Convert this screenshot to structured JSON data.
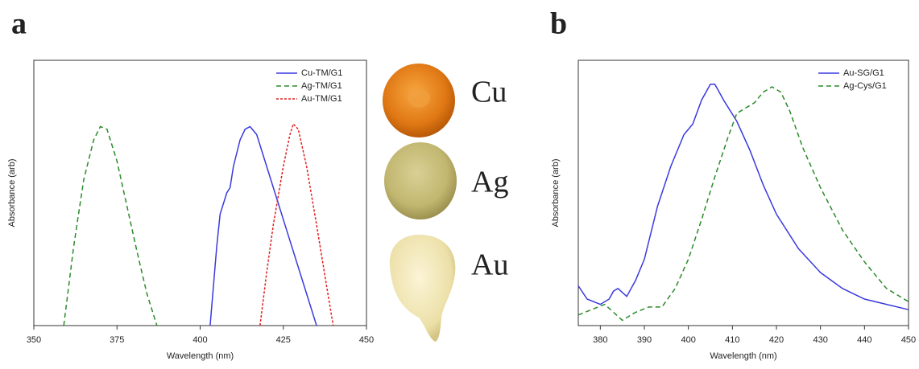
{
  "chart_data": [
    {
      "type": "line",
      "panel_label": "a",
      "x_label": "Wavelength (nm)",
      "y_label": "Absorbance (arb)",
      "xlim": [
        350,
        450
      ],
      "xticks": [
        350,
        375,
        400,
        425,
        450
      ],
      "ylim": [
        0,
        1
      ],
      "legend": "upper right",
      "series": [
        {
          "name": "Cu-TM/G1",
          "color": "#3a3adf",
          "dash": "solid",
          "x": [
            403,
            405,
            406,
            408,
            409,
            410,
            412,
            413.5,
            415,
            417,
            420,
            423,
            426,
            430,
            433,
            435
          ],
          "values": [
            0,
            0.3,
            0.42,
            0.5,
            0.52,
            0.6,
            0.7,
            0.74,
            0.75,
            0.72,
            0.6,
            0.48,
            0.36,
            0.2,
            0.08,
            0
          ]
        },
        {
          "name": "Ag-TM/G1",
          "color": "#2a8a2a",
          "dash": "dashed",
          "x": [
            359,
            362,
            365,
            368,
            370,
            372,
            375,
            378,
            381,
            384,
            387
          ],
          "values": [
            0,
            0.3,
            0.55,
            0.7,
            0.75,
            0.74,
            0.62,
            0.45,
            0.28,
            0.12,
            0
          ]
        },
        {
          "name": "Au-TM/G1",
          "color": "#e02020",
          "dash": "dotted",
          "x": [
            418,
            420,
            422,
            425,
            427,
            428,
            429.5,
            432,
            435,
            438,
            440
          ],
          "values": [
            0,
            0.2,
            0.38,
            0.6,
            0.72,
            0.76,
            0.74,
            0.6,
            0.38,
            0.15,
            0
          ]
        }
      ]
    },
    {
      "type": "line",
      "panel_label": "b",
      "x_label": "Wavelength (nm)",
      "y_label": "Absorbance (arb)",
      "xlim": [
        375,
        450
      ],
      "xticks": [
        380,
        390,
        400,
        410,
        420,
        430,
        440,
        450
      ],
      "ylim": [
        0,
        1
      ],
      "legend": "upper right",
      "series": [
        {
          "name": "Au-SG/G1",
          "color": "#3a3adf",
          "dash": "solid",
          "x": [
            375,
            377,
            380,
            382,
            383,
            384,
            386,
            388,
            390,
            393,
            396,
            399,
            401,
            403,
            405,
            406,
            408,
            411,
            414,
            417,
            420,
            425,
            430,
            435,
            440,
            445,
            450
          ],
          "values": [
            0.15,
            0.1,
            0.08,
            0.1,
            0.13,
            0.14,
            0.11,
            0.17,
            0.25,
            0.45,
            0.6,
            0.72,
            0.76,
            0.85,
            0.91,
            0.91,
            0.85,
            0.77,
            0.66,
            0.53,
            0.42,
            0.29,
            0.2,
            0.14,
            0.1,
            0.08,
            0.06
          ]
        },
        {
          "name": "Ag-Cys/G1",
          "color": "#2a8a2a",
          "dash": "dashed",
          "x": [
            375,
            378,
            381,
            383,
            385,
            388,
            391,
            394,
            397,
            400,
            403,
            406,
            409,
            411,
            413,
            415,
            417,
            419,
            421,
            423,
            426,
            430,
            435,
            440,
            445,
            450
          ],
          "values": [
            0.04,
            0.06,
            0.08,
            0.05,
            0.02,
            0.05,
            0.07,
            0.07,
            0.14,
            0.25,
            0.4,
            0.56,
            0.71,
            0.8,
            0.82,
            0.84,
            0.88,
            0.9,
            0.88,
            0.81,
            0.67,
            0.52,
            0.36,
            0.24,
            0.14,
            0.09
          ]
        }
      ]
    }
  ],
  "photos": {
    "labels": [
      "Cu",
      "Ag",
      "Au"
    ]
  }
}
